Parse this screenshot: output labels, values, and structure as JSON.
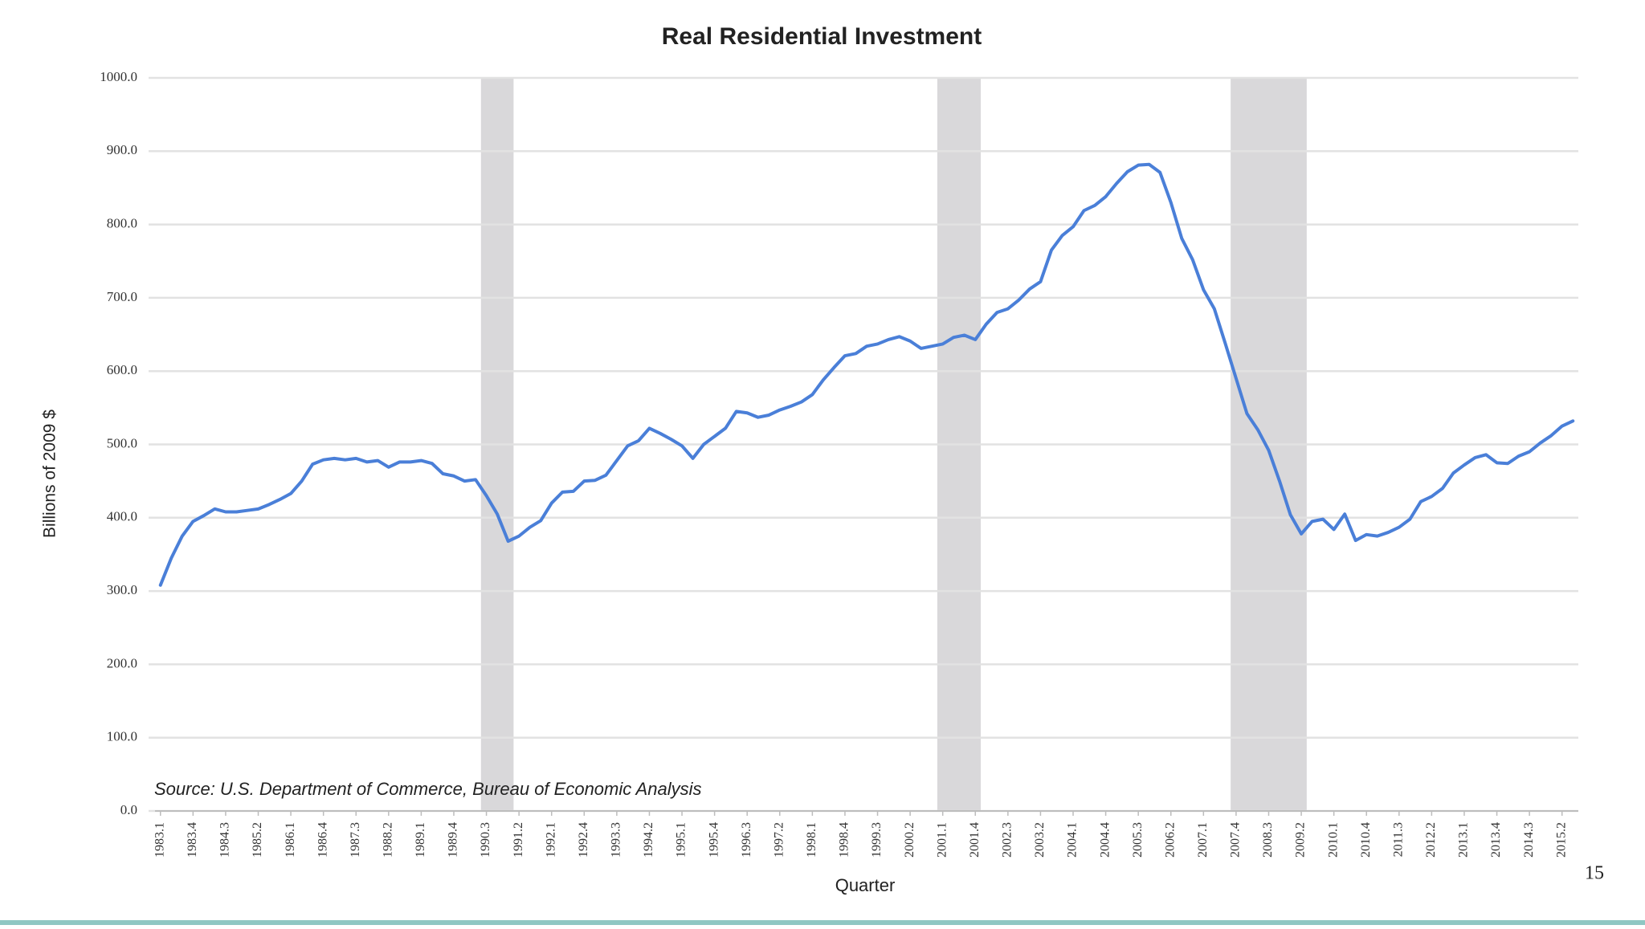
{
  "chart_data": {
    "type": "line",
    "title": "Real Residential Investment",
    "y_label": "Billions of 2009 $",
    "x_label": "Quarter",
    "source": "Source: U.S. Department of Commerce, Bureau of Economic Analysis",
    "page_number": "15",
    "color": "#4a7fd8",
    "grid": true,
    "shade_color": "#d9d8da",
    "shaded_ranges": [
      [
        30,
        32
      ],
      [
        72,
        75
      ],
      [
        99,
        105
      ]
    ],
    "ylim": [
      0,
      1000
    ],
    "yticks": [
      {
        "value": 0,
        "label": "0.0"
      },
      {
        "value": 100,
        "label": "100.0"
      },
      {
        "value": 200,
        "label": "200.0"
      },
      {
        "value": 300,
        "label": "300.0"
      },
      {
        "value": 400,
        "label": "400.0"
      },
      {
        "value": 500,
        "label": "500.0"
      },
      {
        "value": 600,
        "label": "600.0"
      },
      {
        "value": 700,
        "label": "700.0"
      },
      {
        "value": 800,
        "label": "800.0"
      },
      {
        "value": 900,
        "label": "900.0"
      },
      {
        "value": 1000,
        "label": "1000.0"
      }
    ],
    "categories": [
      "1983.1",
      null,
      null,
      "1983.4",
      null,
      null,
      "1984.3",
      null,
      null,
      "1985.2",
      null,
      null,
      "1986.1",
      null,
      null,
      "1986.4",
      null,
      null,
      "1987.3",
      null,
      null,
      "1988.2",
      null,
      null,
      "1989.1",
      null,
      null,
      "1989.4",
      null,
      null,
      "1990.3",
      null,
      null,
      "1991.2",
      null,
      null,
      "1992.1",
      null,
      null,
      "1992.4",
      null,
      null,
      "1993.3",
      null,
      null,
      "1994.2",
      null,
      null,
      "1995.1",
      null,
      null,
      "1995.4",
      null,
      null,
      "1996.3",
      null,
      null,
      "1997.2",
      null,
      null,
      "1998.1",
      null,
      null,
      "1998.4",
      null,
      null,
      "1999.3",
      null,
      null,
      "2000.2",
      null,
      null,
      "2001.1",
      null,
      null,
      "2001.4",
      null,
      null,
      "2002.3",
      null,
      null,
      "2003.2",
      null,
      null,
      "2004.1",
      null,
      null,
      "2004.4",
      null,
      null,
      "2005.3",
      null,
      null,
      "2006.2",
      null,
      null,
      "2007.1",
      null,
      null,
      "2007.4",
      null,
      null,
      "2008.3",
      null,
      null,
      "2009.2",
      null,
      null,
      "2010.1",
      null,
      null,
      "2010.4",
      null,
      null,
      "2011.3",
      null,
      null,
      "2012.2",
      null,
      null,
      "2013.1",
      null,
      null,
      "2013.4",
      null,
      null,
      "2014.3",
      null,
      null,
      "2015.2",
      null
    ],
    "values": [
      308,
      345,
      375,
      395,
      403,
      412,
      408,
      408,
      410,
      412,
      418,
      425,
      433,
      450,
      473,
      479,
      481,
      479,
      481,
      476,
      478,
      469,
      476,
      476,
      478,
      474,
      460,
      457,
      450,
      452,
      430,
      405,
      368,
      375,
      387,
      396,
      420,
      435,
      436,
      450,
      451,
      458,
      478,
      498,
      505,
      522,
      515,
      507,
      498,
      481,
      500,
      511,
      522,
      545,
      543,
      537,
      540,
      547,
      552,
      558,
      568,
      588,
      605,
      621,
      624,
      634,
      637,
      643,
      647,
      641,
      631,
      634,
      637,
      646,
      649,
      643,
      664,
      680,
      685,
      697,
      712,
      722,
      765,
      785,
      797,
      819,
      826,
      838,
      856,
      872,
      881,
      882,
      871,
      830,
      781,
      752,
      711,
      685,
      638,
      590,
      542,
      520,
      492,
      450,
      404,
      378,
      395,
      398,
      384,
      405,
      369,
      377,
      375,
      380,
      387,
      398,
      422,
      429,
      440,
      461,
      472,
      482,
      486,
      475,
      474,
      484,
      490,
      502,
      512,
      525,
      532
    ]
  }
}
